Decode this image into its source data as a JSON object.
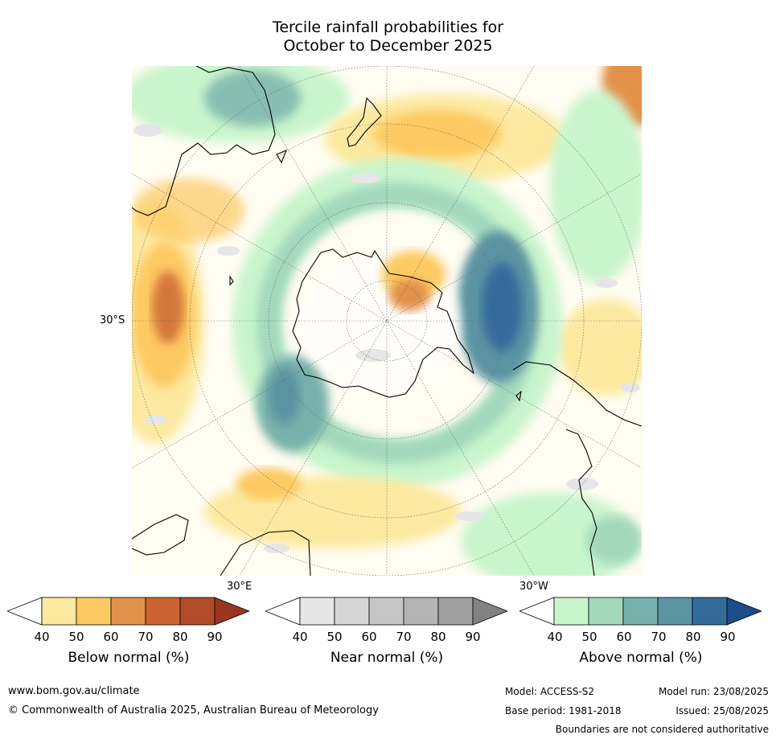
{
  "title_line1": "Tercile rainfall probabilities for",
  "title_line2": "October to December 2025",
  "axis_labels": {
    "lat_30S": "30°S",
    "lon_30E": "30°E",
    "lon_30W": "30°W"
  },
  "colorbars": [
    {
      "label": "Below normal (%)",
      "ticks": [
        "40",
        "50",
        "60",
        "70",
        "80",
        "90"
      ],
      "colors": [
        "#ffffff",
        "#fde9a0",
        "#fdc962",
        "#e2914a",
        "#cb6333",
        "#b14b29",
        "#9a3520"
      ]
    },
    {
      "label": "Near normal (%)",
      "ticks": [
        "40",
        "50",
        "60",
        "70",
        "80",
        "90"
      ],
      "colors": [
        "#ffffff",
        "#e6e6e6",
        "#d6d6d6",
        "#c6c6c6",
        "#b4b4b4",
        "#a0a0a0",
        "#828282"
      ]
    },
    {
      "label": "Above normal (%)",
      "ticks": [
        "40",
        "50",
        "60",
        "70",
        "80",
        "90"
      ],
      "colors": [
        "#ffffff",
        "#c9f5cd",
        "#a3d8bc",
        "#78b1ab",
        "#5b93a3",
        "#356b9b",
        "#1a4d8a"
      ]
    }
  ],
  "footer": {
    "website": "www.bom.gov.au/climate",
    "copyright": "© Commonwealth of Australia 2025, Australian Bureau of Meteorology",
    "model": "Model: ACCESS-S2",
    "model_run": "Model run: 23/08/2025",
    "base_period": "Base period: 1981-2018",
    "issued": "Issued: 25/08/2025",
    "boundaries": "Boundaries are not considered authoritative"
  }
}
